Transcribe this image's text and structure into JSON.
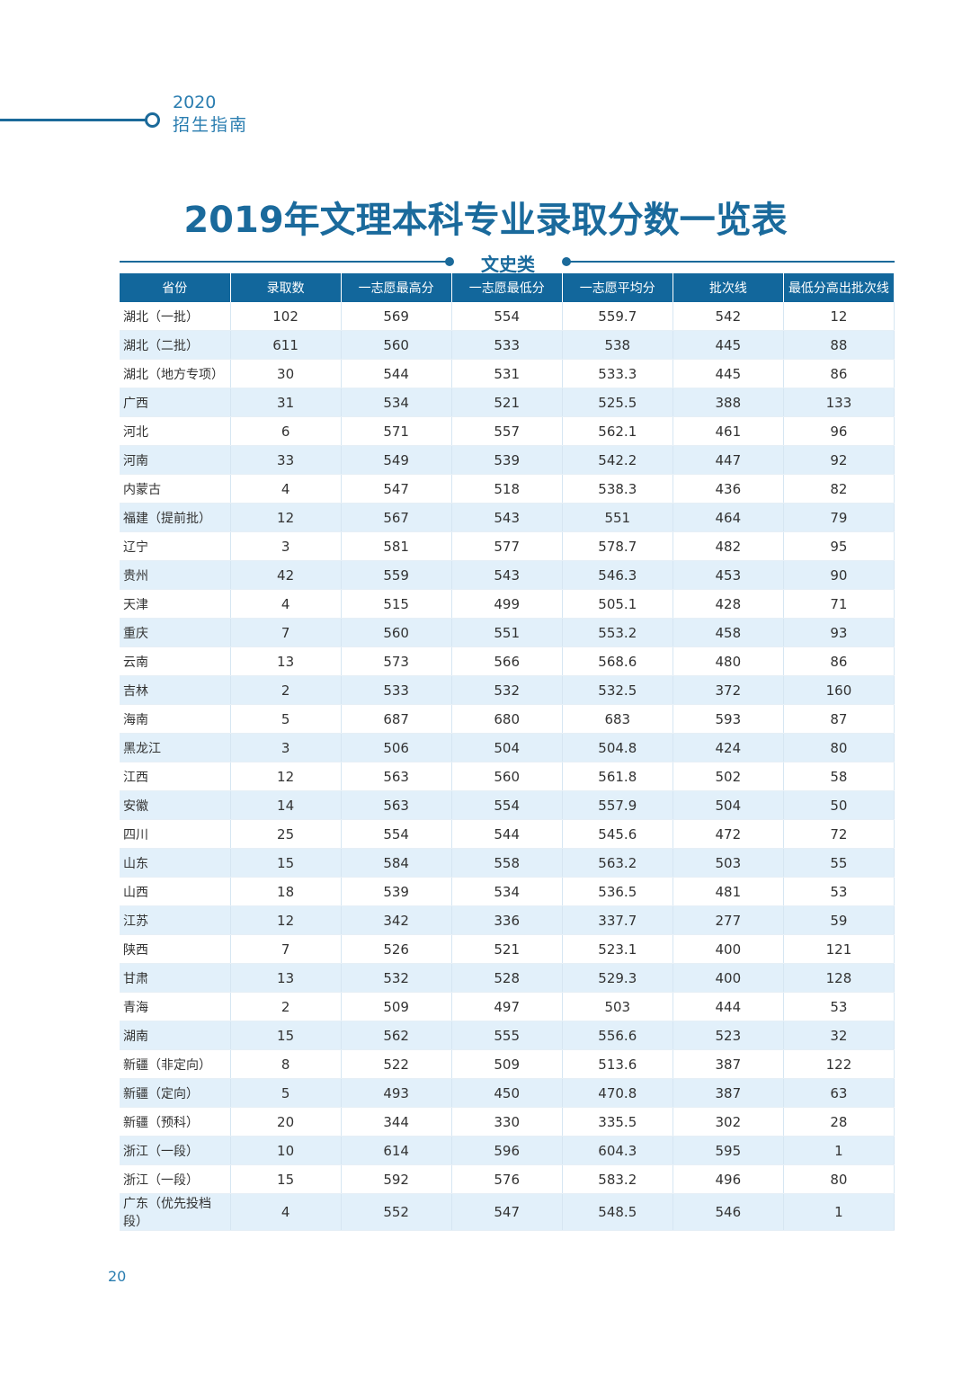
{
  "header": {
    "year": "2020",
    "subtitle": "招生指南"
  },
  "title": "2019年文理本科专业录取分数一览表",
  "section": "文史类",
  "columns": [
    "省份",
    "录取数",
    "一志愿最高分",
    "一志愿最低分",
    "一志愿平均分",
    "批次线",
    "最低分高出批次线"
  ],
  "rows": [
    [
      "湖北（一批）",
      "102",
      "569",
      "554",
      "559.7",
      "542",
      "12"
    ],
    [
      "湖北（二批）",
      "611",
      "560",
      "533",
      "538",
      "445",
      "88"
    ],
    [
      "湖北（地方专项）",
      "30",
      "544",
      "531",
      "533.3",
      "445",
      "86"
    ],
    [
      "广西",
      "31",
      "534",
      "521",
      "525.5",
      "388",
      "133"
    ],
    [
      "河北",
      "6",
      "571",
      "557",
      "562.1",
      "461",
      "96"
    ],
    [
      "河南",
      "33",
      "549",
      "539",
      "542.2",
      "447",
      "92"
    ],
    [
      "内蒙古",
      "4",
      "547",
      "518",
      "538.3",
      "436",
      "82"
    ],
    [
      "福建（提前批）",
      "12",
      "567",
      "543",
      "551",
      "464",
      "79"
    ],
    [
      "辽宁",
      "3",
      "581",
      "577",
      "578.7",
      "482",
      "95"
    ],
    [
      "贵州",
      "42",
      "559",
      "543",
      "546.3",
      "453",
      "90"
    ],
    [
      "天津",
      "4",
      "515",
      "499",
      "505.1",
      "428",
      "71"
    ],
    [
      "重庆",
      "7",
      "560",
      "551",
      "553.2",
      "458",
      "93"
    ],
    [
      "云南",
      "13",
      "573",
      "566",
      "568.6",
      "480",
      "86"
    ],
    [
      "吉林",
      "2",
      "533",
      "532",
      "532.5",
      "372",
      "160"
    ],
    [
      "海南",
      "5",
      "687",
      "680",
      "683",
      "593",
      "87"
    ],
    [
      "黑龙江",
      "3",
      "506",
      "504",
      "504.8",
      "424",
      "80"
    ],
    [
      "江西",
      "12",
      "563",
      "560",
      "561.8",
      "502",
      "58"
    ],
    [
      "安徽",
      "14",
      "563",
      "554",
      "557.9",
      "504",
      "50"
    ],
    [
      "四川",
      "25",
      "554",
      "544",
      "545.6",
      "472",
      "72"
    ],
    [
      "山东",
      "15",
      "584",
      "558",
      "563.2",
      "503",
      "55"
    ],
    [
      "山西",
      "18",
      "539",
      "534",
      "536.5",
      "481",
      "53"
    ],
    [
      "江苏",
      "12",
      "342",
      "336",
      "337.7",
      "277",
      "59"
    ],
    [
      "陕西",
      "7",
      "526",
      "521",
      "523.1",
      "400",
      "121"
    ],
    [
      "甘肃",
      "13",
      "532",
      "528",
      "529.3",
      "400",
      "128"
    ],
    [
      "青海",
      "2",
      "509",
      "497",
      "503",
      "444",
      "53"
    ],
    [
      "湖南",
      "15",
      "562",
      "555",
      "556.6",
      "523",
      "32"
    ],
    [
      "新疆（非定向）",
      "8",
      "522",
      "509",
      "513.6",
      "387",
      "122"
    ],
    [
      "新疆（定向）",
      "5",
      "493",
      "450",
      "470.8",
      "387",
      "63"
    ],
    [
      "新疆（预科）",
      "20",
      "344",
      "330",
      "335.5",
      "302",
      "28"
    ],
    [
      "浙江（一段）",
      "10",
      "614",
      "596",
      "604.3",
      "595",
      "1"
    ],
    [
      "浙江（一段）",
      "15",
      "592",
      "576",
      "583.2",
      "496",
      "80"
    ],
    [
      "广东（优先投档段）",
      "4",
      "552",
      "547",
      "548.5",
      "546",
      "1"
    ]
  ],
  "page_number": "20"
}
